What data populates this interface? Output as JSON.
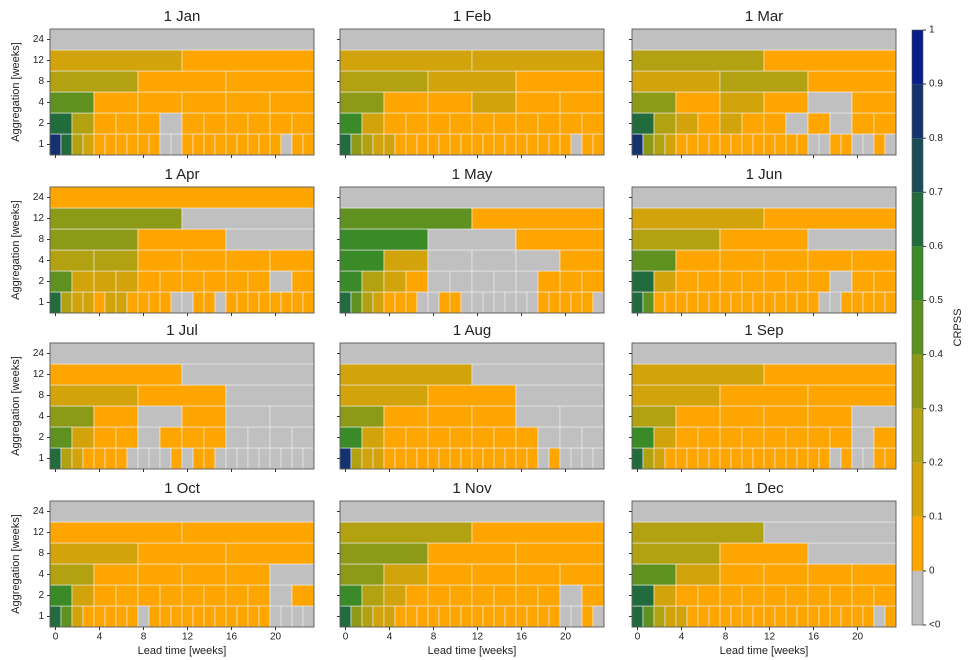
{
  "chart_data": {
    "type": "heatmap",
    "xlabel": "Lead time [weeks]",
    "ylabel": "Aggregation [weeks]",
    "xlim": [
      -0.5,
      23.5
    ],
    "xticks": [
      0,
      4,
      8,
      12,
      16,
      20
    ],
    "aggregations": [
      1,
      2,
      4,
      8,
      12,
      24
    ],
    "colorbar": {
      "label": "CRPSS",
      "ticks": [
        {
          "value": -0.1,
          "label": "<0"
        },
        0,
        0.1,
        0.2,
        0.3,
        0.4,
        0.5,
        0.6,
        0.7,
        0.8,
        0.9,
        1
      ],
      "colors": [
        "#c0c0c0",
        "#ffa500",
        "#d2a30a",
        "#b2a111",
        "#8d9a17",
        "#5f9121",
        "#3a8a27",
        "#226b3c",
        "#1a4d58",
        "#14336e",
        "#0a1c88"
      ]
    },
    "panels": [
      {
        "title": "1 Jan",
        "values": [
          [
            0.85,
            0.65,
            0.25,
            0.15,
            0.05,
            0.05,
            0.05,
            0.05,
            0.05,
            0.05,
            -0.05,
            -0.05,
            0.05,
            0.05,
            0.05,
            0.05,
            0.05,
            0.05,
            0.05,
            0.05,
            0.05,
            -0.05,
            0.05,
            0.05
          ],
          [
            0.65,
            0.25,
            0.05,
            0.05,
            0.05,
            -0.05,
            0.05,
            0.05,
            0.05,
            0.05,
            0.05,
            0.05
          ],
          [
            0.45,
            0.05,
            0.05,
            0.05,
            0.05,
            0.05
          ],
          [
            0.25,
            0.05,
            0.05
          ],
          [
            0.15,
            0.05
          ],
          [
            -0.05
          ]
        ]
      },
      {
        "title": "1 Feb",
        "values": [
          [
            0.65,
            0.35,
            0.25,
            0.15,
            0.15,
            0.05,
            0.05,
            0.05,
            0.05,
            0.05,
            0.05,
            0.05,
            0.05,
            0.05,
            0.05,
            0.05,
            0.05,
            0.05,
            0.05,
            0.05,
            0.05,
            -0.05,
            0.05,
            0.05
          ],
          [
            0.55,
            0.15,
            0.05,
            0.05,
            0.05,
            0.05,
            0.05,
            0.05,
            0.05,
            0.05,
            0.05,
            0.05
          ],
          [
            0.35,
            0.05,
            0.05,
            0.15,
            0.05,
            0.05
          ],
          [
            0.25,
            0.15,
            0.05
          ],
          [
            0.15,
            0.15
          ],
          [
            -0.05
          ]
        ]
      },
      {
        "title": "1 Mar",
        "values": [
          [
            0.85,
            0.35,
            0.25,
            0.15,
            0.05,
            0.05,
            0.05,
            0.05,
            0.05,
            0.05,
            0.05,
            0.05,
            0.05,
            0.05,
            0.05,
            0.05,
            -0.05,
            -0.05,
            0.05,
            0.05,
            -0.05,
            -0.05,
            0.05,
            -0.05
          ],
          [
            0.65,
            0.25,
            0.15,
            0.05,
            0.15,
            0.05,
            0.05,
            -0.05,
            0.05,
            -0.05,
            0.05,
            0.05
          ],
          [
            0.35,
            0.05,
            0.15,
            0.05,
            -0.05,
            0.05
          ],
          [
            0.15,
            0.25,
            0.05
          ],
          [
            0.25,
            0.05
          ],
          [
            -0.05
          ]
        ]
      },
      {
        "title": "1 Apr",
        "values": [
          [
            0.65,
            0.25,
            0.15,
            0.15,
            0.05,
            0.15,
            0.15,
            0.05,
            0.05,
            0.05,
            0.05,
            -0.05,
            -0.05,
            0.05,
            0.05,
            -0.05,
            0.05,
            0.05,
            0.05,
            0.05,
            0.05,
            0.05,
            0.05,
            0.05
          ],
          [
            0.45,
            0.15,
            0.15,
            0.15,
            0.05,
            0.05,
            0.05,
            0.05,
            0.05,
            0.05,
            -0.05,
            0.05
          ],
          [
            0.25,
            0.25,
            0.05,
            0.05,
            0.05,
            0.05
          ],
          [
            0.35,
            0.05,
            -0.05
          ],
          [
            0.35,
            -0.05
          ],
          [
            0.05
          ]
        ]
      },
      {
        "title": "1 May",
        "values": [
          [
            0.65,
            0.45,
            0.25,
            0.15,
            0.05,
            0.05,
            0.05,
            -0.05,
            -0.05,
            0.05,
            0.05,
            -0.05,
            -0.05,
            -0.05,
            -0.05,
            -0.05,
            -0.05,
            -0.05,
            0.05,
            0.05,
            0.05,
            0.05,
            0.05,
            -0.05
          ],
          [
            0.55,
            0.25,
            0.15,
            0.05,
            -0.05,
            -0.05,
            -0.05,
            -0.05,
            -0.05,
            0.05,
            0.05,
            0.05
          ],
          [
            0.55,
            0.15,
            -0.05,
            -0.05,
            -0.05,
            0.05
          ],
          [
            0.55,
            -0.05,
            0.05
          ],
          [
            0.45,
            0.05
          ],
          [
            -0.05
          ]
        ]
      },
      {
        "title": "1 Jun",
        "values": [
          [
            0.65,
            0.45,
            0.05,
            0.05,
            0.05,
            0.05,
            0.05,
            0.05,
            0.05,
            0.05,
            0.05,
            0.05,
            0.05,
            0.05,
            0.05,
            0.05,
            0.05,
            -0.05,
            -0.05,
            0.05,
            0.05,
            0.05,
            0.05,
            0.05
          ],
          [
            0.65,
            0.15,
            0.05,
            0.05,
            0.05,
            0.05,
            0.05,
            0.05,
            0.05,
            -0.05,
            0.05,
            0.05
          ],
          [
            0.45,
            0.05,
            0.05,
            0.05,
            0.05,
            0.05
          ],
          [
            0.25,
            0.05,
            -0.05
          ],
          [
            0.15,
            0.05
          ],
          [
            -0.05
          ]
        ]
      },
      {
        "title": "1 Jul",
        "values": [
          [
            0.65,
            0.25,
            0.15,
            0.05,
            0.05,
            0.05,
            0.05,
            -0.05,
            -0.05,
            -0.05,
            -0.05,
            0.05,
            -0.05,
            0.05,
            0.05,
            -0.05,
            -0.05,
            -0.05,
            -0.05,
            -0.05,
            -0.05,
            -0.05,
            -0.05,
            -0.05
          ],
          [
            0.45,
            0.15,
            0.05,
            0.05,
            -0.05,
            0.05,
            0.05,
            0.05,
            -0.05,
            -0.05,
            -0.05,
            -0.05
          ],
          [
            0.35,
            0.05,
            -0.05,
            0.05,
            -0.05,
            -0.05
          ],
          [
            0.15,
            0.05,
            -0.05
          ],
          [
            0.05,
            -0.05
          ],
          [
            -0.05
          ]
        ]
      },
      {
        "title": "1 Aug",
        "values": [
          [
            0.85,
            0.25,
            0.15,
            0.15,
            0.05,
            0.05,
            0.05,
            0.05,
            0.05,
            0.05,
            0.05,
            0.05,
            0.05,
            0.05,
            0.05,
            0.05,
            0.05,
            0.05,
            -0.05,
            0.05,
            -0.05,
            -0.05,
            -0.05,
            -0.05
          ],
          [
            0.55,
            0.15,
            0.05,
            0.05,
            0.05,
            0.05,
            0.05,
            0.05,
            0.05,
            -0.05,
            -0.05,
            -0.05
          ],
          [
            0.35,
            0.05,
            0.05,
            0.05,
            -0.05,
            -0.05
          ],
          [
            0.15,
            0.05,
            -0.05
          ],
          [
            0.15,
            -0.05
          ],
          [
            -0.05
          ]
        ]
      },
      {
        "title": "1 Sep",
        "values": [
          [
            0.65,
            0.25,
            0.15,
            0.05,
            0.05,
            0.05,
            0.05,
            0.05,
            0.05,
            0.05,
            0.05,
            0.05,
            0.05,
            0.05,
            0.05,
            0.05,
            0.05,
            0.05,
            -0.05,
            0.05,
            -0.05,
            -0.05,
            0.05,
            0.05
          ],
          [
            0.55,
            0.15,
            0.05,
            0.05,
            0.05,
            0.05,
            0.05,
            0.05,
            0.05,
            0.05,
            -0.05,
            0.05
          ],
          [
            0.25,
            0.05,
            0.05,
            0.05,
            0.05,
            -0.05
          ],
          [
            0.15,
            0.05,
            0.05
          ],
          [
            0.15,
            0.05
          ],
          [
            -0.05
          ]
        ]
      },
      {
        "title": "1 Oct",
        "values": [
          [
            0.65,
            0.45,
            0.15,
            0.05,
            0.05,
            0.05,
            0.05,
            0.05,
            -0.05,
            0.05,
            0.05,
            0.05,
            0.05,
            0.05,
            0.05,
            0.05,
            0.05,
            0.05,
            0.05,
            0.05,
            -0.05,
            -0.05,
            -0.05,
            -0.05
          ],
          [
            0.55,
            0.15,
            0.05,
            0.05,
            0.05,
            0.05,
            0.05,
            0.05,
            0.05,
            0.05,
            -0.05,
            0.05
          ],
          [
            0.25,
            0.05,
            0.05,
            0.05,
            0.05,
            -0.05
          ],
          [
            0.15,
            0.05,
            0.05
          ],
          [
            0.05,
            0.05
          ],
          [
            -0.05
          ]
        ]
      },
      {
        "title": "1 Nov",
        "values": [
          [
            0.65,
            0.35,
            0.25,
            0.15,
            0.15,
            0.05,
            0.05,
            0.05,
            0.05,
            0.05,
            0.05,
            0.05,
            0.05,
            0.05,
            0.05,
            0.05,
            0.05,
            0.05,
            0.05,
            0.05,
            -0.05,
            -0.05,
            0.05,
            -0.05
          ],
          [
            0.55,
            0.25,
            0.15,
            0.05,
            0.05,
            0.05,
            0.05,
            0.05,
            0.05,
            0.05,
            -0.05,
            0.05
          ],
          [
            0.35,
            0.15,
            0.05,
            0.05,
            0.05,
            0.05
          ],
          [
            0.35,
            0.05,
            0.05
          ],
          [
            0.25,
            0.05
          ],
          [
            -0.05
          ]
        ]
      },
      {
        "title": "1 Dec",
        "values": [
          [
            0.65,
            0.45,
            0.25,
            0.15,
            0.15,
            0.05,
            0.05,
            0.05,
            0.05,
            0.05,
            0.05,
            0.05,
            0.05,
            0.05,
            0.05,
            0.05,
            0.05,
            0.05,
            0.05,
            0.05,
            0.05,
            0.05,
            -0.05,
            0.05
          ],
          [
            0.65,
            0.15,
            0.05,
            0.05,
            0.05,
            0.05,
            0.05,
            0.05,
            0.05,
            0.05,
            0.05,
            0.05
          ],
          [
            0.45,
            0.15,
            0.05,
            0.05,
            0.05,
            0.05
          ],
          [
            0.25,
            0.05,
            -0.05
          ],
          [
            0.25,
            -0.05
          ],
          [
            -0.05
          ]
        ]
      }
    ]
  }
}
